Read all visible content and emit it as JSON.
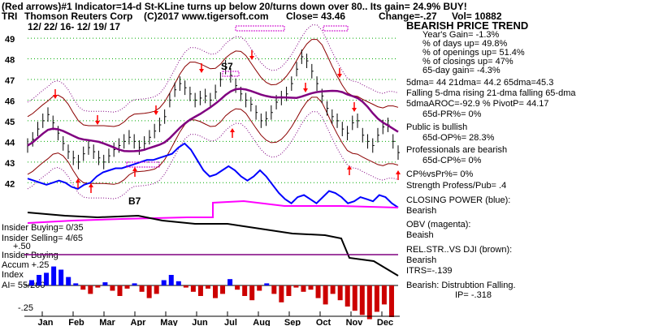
{
  "header": {
    "line1": "(Red arrows)#1 Indicator=14-d St-KLine turns up below 20/turns down over 80.. Its gain= 24.9% BUY!",
    "ticker": "TRI",
    "company": "Thomson Reuters Corp",
    "copyright": "(C)2017 www.tigersoft.com",
    "close": "Close=  43.46",
    "change": "Change=-.27",
    "vol": "Vol= 10882",
    "date_range": "12/ 22/ 16- 12/ 19/ 17"
  },
  "right_panel": {
    "lines": [
      "BEARISH PRICE TREND",
      "Year's Gain= -1.3%",
      "% of days up= 49.8%",
      "% of openings up= 51.4%",
      "% of closings up= 47%",
      "65-day gain= -4.3%",
      "5dma= 44 21dma= 44.2 65dma=45.3",
      "Falling 5-dma rising 21-dma falling 65-dma",
      "5dmaAROC=-92.9 %  PivotP= 44.17",
      "65d-PR%= 0%",
      "Public is bullish",
      "65d-OP%= 28.3%",
      "Professionals are bearish",
      "65d-CP%= 0%",
      "CP%vsPr%=  0%",
      "Strength Profess/Pub= .4",
      "CLOSING POWER (blue):",
      "Bearish",
      "OBV (magenta):",
      "Beaish",
      "REL.STR..VS DJI (brown):",
      "Bearish",
      "ITRS=-.139",
      "Bearish:  Distrubtion Falling.",
      "IP= -.318"
    ]
  },
  "labels": {
    "insider_buying_1": "Insider Buying= 0/35",
    "insider_selling": "Insider Selling= 4/65",
    "plus50": "+.50",
    "insider_buying_2": "Insider Buying",
    "accum": "Accum +.25",
    "index": "Index",
    "ai": "AI= 55/200",
    "minus25": "-.25",
    "s7": "S7",
    "b7": "B7"
  },
  "colors": {
    "price_bar": "#000000",
    "ma21": "#8b0000",
    "ma65": "#800080",
    "band_outer": "#800080",
    "band_inner": "#8b0000",
    "closing_power": "#0000ff",
    "obv": "#ff00ff",
    "rel_str": "#000000",
    "accum_pos": "#0000ff",
    "accum_neg": "#cc0000",
    "arrow": "#ff0000",
    "grid": "#00aa00",
    "signal_magenta": "#cc00cc"
  },
  "chart_data": {
    "type": "ohlc",
    "title": "TRI  Thomson Reuters Corp",
    "y_ticks": [
      49,
      48,
      47,
      46,
      45,
      44,
      43,
      42
    ],
    "ylim": [
      41.5,
      49.2
    ],
    "x_ticks": [
      "Jan",
      "Feb",
      "Mar",
      "Apr",
      "May",
      "Jun",
      "Jul",
      "Aug",
      "Sep",
      "Oct",
      "Nov",
      "Dec"
    ],
    "grid": true,
    "price_close": [
      43.8,
      44.1,
      44.6,
      45.0,
      45.3,
      44.9,
      44.4,
      43.9,
      43.5,
      43.2,
      43.0,
      43.4,
      43.7,
      43.5,
      43.2,
      43.0,
      43.3,
      43.6,
      43.8,
      44.0,
      44.2,
      44.0,
      43.7,
      43.9,
      44.2,
      44.5,
      44.8,
      45.2,
      46.0,
      46.5,
      46.8,
      46.6,
      46.3,
      46.0,
      46.1,
      46.2,
      46.0,
      46.4,
      47.0,
      47.6,
      47.2,
      46.7,
      46.3,
      46.0,
      45.8,
      45.4,
      45.0,
      45.1,
      45.4,
      45.9,
      46.1,
      46.3,
      46.8,
      47.5,
      48.1,
      47.9,
      47.4,
      46.8,
      46.2,
      45.6,
      45.2,
      45.0,
      44.6,
      44.4,
      44.9,
      45.0,
      44.3,
      44.0,
      43.8,
      44.3,
      44.7,
      44.8,
      44.0,
      43.46
    ],
    "closing_power": [
      42.2,
      42.1,
      42.0,
      41.9,
      42.0,
      42.1,
      42.0,
      41.8,
      41.7,
      41.9,
      42.0,
      42.3,
      42.5,
      42.6,
      42.7,
      42.7,
      42.8,
      42.9,
      43.0,
      43.1,
      43.1,
      43.2,
      43.3,
      43.4,
      43.7,
      43.9,
      43.6,
      43.1,
      42.6,
      42.3,
      42.4,
      42.6,
      42.8,
      42.6,
      42.3,
      42.1,
      42.3,
      42.6,
      42.3,
      41.9,
      41.5,
      41.2,
      41.0,
      41.3,
      41.4,
      41.2,
      41.0,
      41.3,
      41.6,
      41.5,
      41.3,
      41.0,
      41.1,
      41.3,
      41.2,
      41.1,
      41.4,
      41.3,
      41.0,
      40.8
    ],
    "accum_index": [
      0.05,
      0.1,
      0.12,
      0.18,
      0.15,
      0.08,
      0.02,
      -0.04,
      -0.08,
      -0.02,
      0.03,
      -0.05,
      -0.1,
      -0.03,
      0.02,
      -0.06,
      -0.12,
      -0.08,
      0.05,
      0.1,
      0.04,
      -0.02,
      -0.06,
      -0.1,
      -0.03,
      -0.12,
      -0.08,
      0.06,
      -0.04,
      -0.1,
      -0.14,
      -0.05,
      0.02,
      -0.08,
      -0.16,
      -0.1,
      -0.02,
      -0.06,
      -0.04,
      -0.12,
      -0.18,
      -0.08,
      -0.14,
      -0.2,
      -0.24,
      -0.28,
      -0.32,
      -0.25,
      -0.18,
      -0.3
    ]
  }
}
